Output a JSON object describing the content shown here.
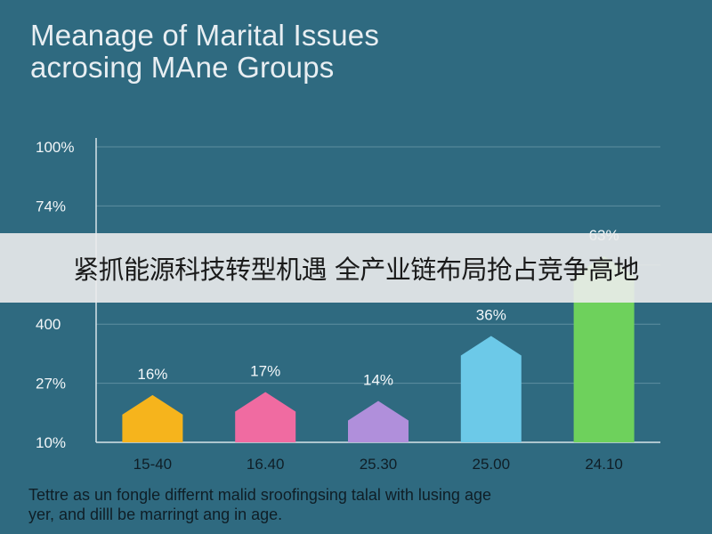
{
  "chart_data": {
    "type": "bar",
    "title_lines": [
      "Meanage of Marital Issues",
      "acrosing MAne Groups"
    ],
    "categories": [
      "15-40",
      "16.40",
      "25.30",
      "25.00",
      "24.10"
    ],
    "series": [
      {
        "values": [
          16,
          17,
          14,
          36,
          63
        ],
        "value_labels": [
          "16%",
          "17%",
          "14%",
          "36%",
          "63%"
        ],
        "colors": [
          "#f6b41c",
          "#f06ba1",
          "#b08fdb",
          "#6cc9e8",
          "#6ed15c"
        ]
      }
    ],
    "y_tick_labels": [
      "100%",
      "74%",
      "",
      "400",
      "27%",
      "10%"
    ],
    "grid": true,
    "legend": "none",
    "caption_lines": [
      "Tettre as un fongle differnt malid sroofingsing talal with lusing age",
      "yer, and dilll be marringt ang in age."
    ]
  },
  "banner": {
    "text": "紧抓能源科技转型机遇 全产业链布局抢占竞争高地"
  }
}
